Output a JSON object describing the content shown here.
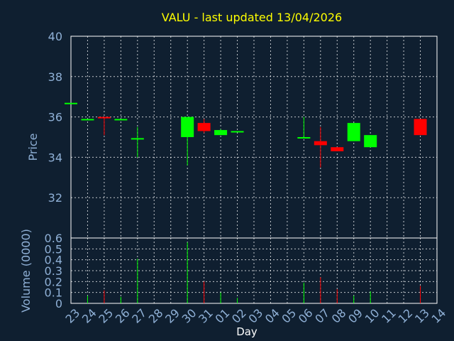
{
  "chart_data": {
    "type": "candlestick",
    "title": "VALU - last updated 13/04/2026",
    "xlabel": "Day",
    "colors": {
      "background": "#0f1f30",
      "plot_background": "#0f1f30",
      "axis": "#ffffff",
      "grid": "#ffffff",
      "title": "#ffff00",
      "label": "#8fb0d6",
      "up": "#00ff00",
      "down": "#ff0000"
    },
    "x_ticks": [
      "23",
      "24",
      "25",
      "26",
      "27",
      "28",
      "29",
      "30",
      "31",
      "01",
      "02",
      "03",
      "04",
      "05",
      "06",
      "07",
      "08",
      "09",
      "10",
      "11",
      "12",
      "13",
      "14"
    ],
    "price_panel": {
      "ylabel": "Price",
      "ylim": [
        30,
        40
      ],
      "yticks": [
        "32",
        "34",
        "36",
        "38",
        "40"
      ],
      "ytick_values": [
        32,
        34,
        36,
        38,
        40
      ]
    },
    "volume_panel": {
      "ylabel": "Volume (0000)",
      "ylim": [
        0,
        0.6
      ],
      "yticks": [
        "0",
        "0.1",
        "0.2",
        "0.3",
        "0.4",
        "0.5",
        "0.6"
      ],
      "ytick_values": [
        0,
        0.1,
        0.2,
        0.3,
        0.4,
        0.5,
        0.6
      ]
    },
    "candles": [
      {
        "day": "23",
        "open": 36.7,
        "high": 36.7,
        "low": 36.7,
        "close": 36.7,
        "volume": 0.0
      },
      {
        "day": "24",
        "open": 35.9,
        "high": 35.9,
        "low": 35.85,
        "close": 35.9,
        "volume": 0.07
      },
      {
        "day": "25",
        "open": 36.0,
        "high": 36.0,
        "low": 35.1,
        "close": 35.95,
        "volume": 0.12
      },
      {
        "day": "26",
        "open": 35.9,
        "high": 35.9,
        "low": 35.85,
        "close": 35.9,
        "volume": 0.06
      },
      {
        "day": "27",
        "open": 34.95,
        "high": 35.5,
        "low": 34.0,
        "close": 34.95,
        "volume": 0.41
      },
      {
        "day": "30",
        "open": 35.0,
        "high": 36.0,
        "low": 33.6,
        "close": 36.0,
        "volume": 0.56
      },
      {
        "day": "31",
        "open": 35.7,
        "high": 35.9,
        "low": 35.2,
        "close": 35.3,
        "volume": 0.2
      },
      {
        "day": "01",
        "open": 35.1,
        "high": 35.4,
        "low": 35.1,
        "close": 35.35,
        "volume": 0.1
      },
      {
        "day": "02",
        "open": 35.3,
        "high": 35.3,
        "low": 35.3,
        "close": 35.3,
        "volume": 0.05
      },
      {
        "day": "06",
        "open": 35.0,
        "high": 36.0,
        "low": 35.0,
        "close": 35.0,
        "volume": 0.19
      },
      {
        "day": "07",
        "open": 34.8,
        "high": 35.5,
        "low": 33.5,
        "close": 34.6,
        "volume": 0.24
      },
      {
        "day": "08",
        "open": 34.5,
        "high": 34.5,
        "low": 34.3,
        "close": 34.3,
        "volume": 0.13
      },
      {
        "day": "09",
        "open": 34.8,
        "high": 35.7,
        "low": 34.8,
        "close": 35.7,
        "volume": 0.07
      },
      {
        "day": "10",
        "open": 34.5,
        "high": 35.1,
        "low": 34.5,
        "close": 35.1,
        "volume": 0.11
      },
      {
        "day": "13",
        "open": 35.9,
        "high": 35.9,
        "low": 35.1,
        "close": 35.1,
        "volume": 0.16
      }
    ],
    "grid": true
  }
}
